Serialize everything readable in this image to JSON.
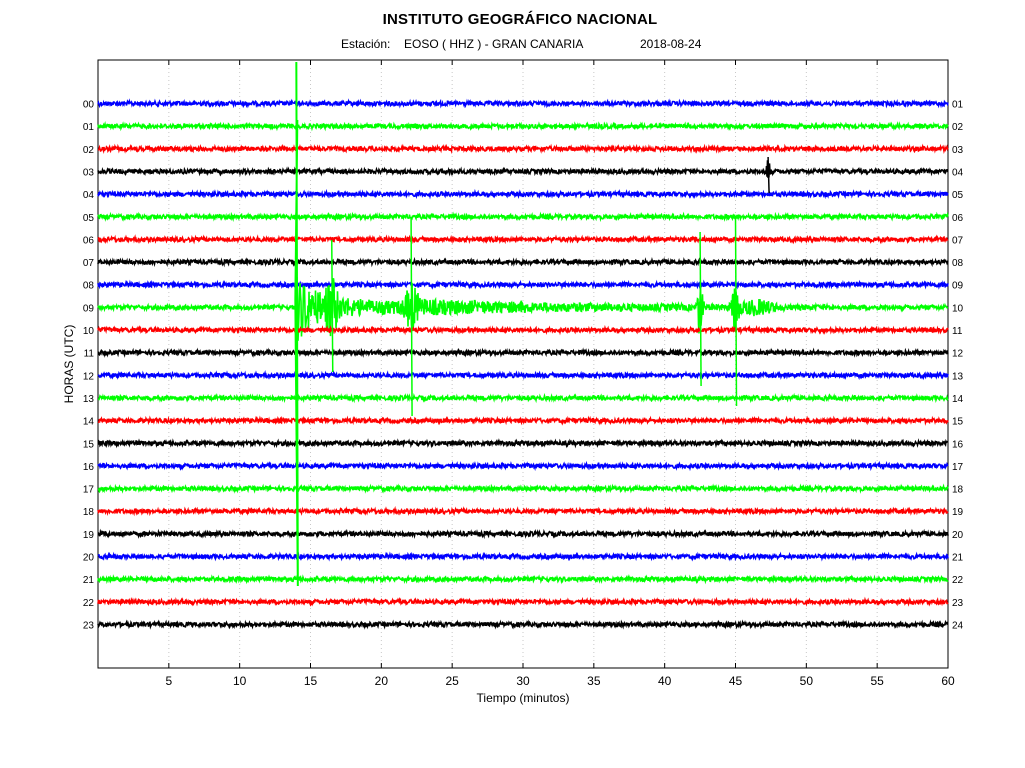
{
  "header": {
    "title": "INSTITUTO GEOGRÁFICO NACIONAL",
    "station_label": "Estación:",
    "station": "EOSO ( HHZ ) - GRAN CANARIA",
    "date": "2018-08-24"
  },
  "chart_data": {
    "type": "line",
    "title": "INSTITUTO GEOGRÁFICO NACIONAL",
    "xlabel": "Tiempo (minutos)",
    "ylabel": "HORAS (UTC)",
    "xlim": [
      0,
      60
    ],
    "x_ticks": [
      5,
      10,
      15,
      20,
      25,
      30,
      35,
      40,
      45,
      50,
      55,
      60
    ],
    "x_tick_labels": [
      "5",
      "10",
      "15",
      "20",
      "25",
      "30",
      "35",
      "40",
      "45",
      "50",
      "55",
      "60"
    ],
    "grid": "vertical dotted lines at each x tick",
    "left_hour_labels": [
      "00",
      "01",
      "02",
      "03",
      "04",
      "05",
      "06",
      "07",
      "08",
      "09",
      "10",
      "11",
      "12",
      "13",
      "14",
      "15",
      "16",
      "17",
      "18",
      "19",
      "20",
      "21",
      "22",
      "23"
    ],
    "right_hour_labels": [
      "01",
      "02",
      "03",
      "04",
      "05",
      "06",
      "07",
      "08",
      "09",
      "10",
      "11",
      "12",
      "13",
      "14",
      "15",
      "16",
      "17",
      "18",
      "19",
      "20",
      "21",
      "22",
      "23",
      "24"
    ],
    "trace_colors": [
      "#0000ff",
      "#00ff00",
      "#ff0000",
      "#000000"
    ],
    "events": [
      {
        "trace_hour": "03",
        "minute": 47.3,
        "amplitude": "moderate spike"
      },
      {
        "trace_hour": "09",
        "minute": 14.0,
        "amplitude": "very large, spanning hours 00-21"
      },
      {
        "trace_hour": "09",
        "minute": 16.5,
        "amplitude": "large"
      },
      {
        "trace_hour": "09",
        "minute": 22.1,
        "amplitude": "large"
      },
      {
        "trace_hour": "09",
        "minute": 42.5,
        "amplitude": "large"
      },
      {
        "trace_hour": "09",
        "minute": 45.0,
        "amplitude": "large"
      }
    ]
  }
}
